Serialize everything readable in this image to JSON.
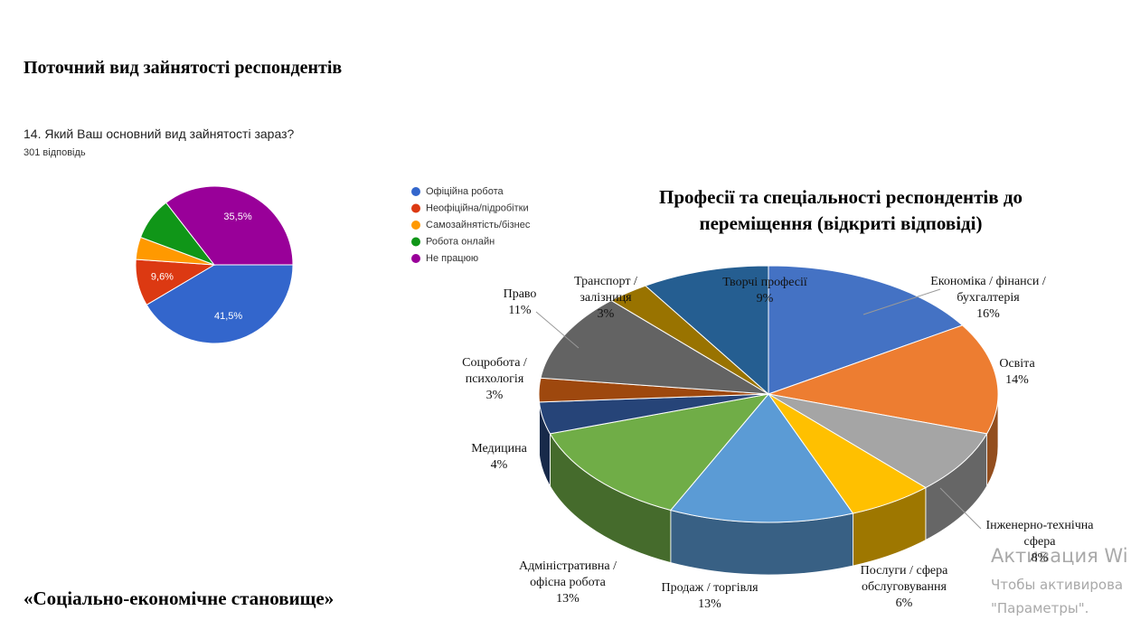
{
  "title": "Поточний вид зайнятості респондентів",
  "footer": "«Соціально-економічне становище»",
  "watermark": [
    "Активация Wi",
    "Чтобы активирова",
    "\"Параметры\"."
  ],
  "chart_data": [
    {
      "type": "pie",
      "title": "14. Який Ваш основний вид зайнятості зараз?",
      "subtitle": "301 відповідь",
      "categories": [
        "Офіційна робота",
        "Неофіційна/підробітки",
        "Самозайнятість/бізнес",
        "Робота онлайн",
        "Не працюю"
      ],
      "values": [
        41.5,
        9.6,
        4.6,
        8.8,
        35.5
      ],
      "value_labels": [
        "41,5%",
        "9,6%",
        null,
        null,
        "35,5%"
      ],
      "colors": [
        "#3366cc",
        "#dc3912",
        "#ff9900",
        "#109618",
        "#990099"
      ],
      "legend": "right"
    },
    {
      "type": "pie3d",
      "title": "Професії та спеціальності респондентів до переміщення (відкриті відповіді)",
      "categories": [
        "Економіка / фінанси / бухгалтерія",
        "Освіта",
        "Інженерно-технічна сфера",
        "Послуги / сфера обслуговування",
        "Продаж / торгівля",
        "Адміністративна / офісна робота",
        "Медицина",
        "Соцробота / психологія",
        "Право",
        "Транспорт / залізниця",
        "Творчі професії"
      ],
      "values": [
        16,
        14,
        8,
        6,
        13,
        13,
        4,
        3,
        11,
        3,
        9
      ],
      "value_labels": [
        "16%",
        "14%",
        "8%",
        "6%",
        "13%",
        "13%",
        "4%",
        "3%",
        "11%",
        "3%",
        "9%"
      ],
      "colors": [
        "#4472c4",
        "#ed7d31",
        "#a5a5a5",
        "#ffc000",
        "#5b9bd5",
        "#70ad47",
        "#264478",
        "#9e480e",
        "#636363",
        "#997300",
        "#255e91"
      ]
    }
  ]
}
